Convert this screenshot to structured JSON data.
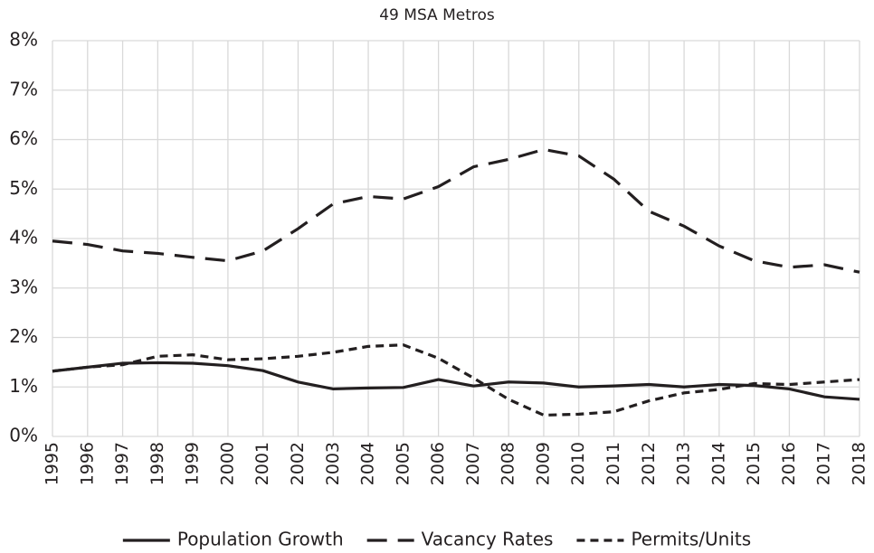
{
  "chart_data": {
    "type": "line",
    "title": "49 MSA Metros",
    "categories": [
      "1995",
      "1996",
      "1997",
      "1998",
      "1999",
      "2000",
      "2001",
      "2002",
      "2003",
      "2004",
      "2005",
      "2006",
      "2007",
      "2008",
      "2009",
      "2010",
      "2011",
      "2012",
      "2013",
      "2014",
      "2015",
      "2016",
      "2017",
      "2018"
    ],
    "series": [
      {
        "name": "Population Growth",
        "color": "#231f20",
        "dash": "solid",
        "values": [
          1.32,
          1.4,
          1.48,
          1.49,
          1.48,
          1.43,
          1.33,
          1.1,
          0.96,
          0.98,
          0.99,
          1.15,
          1.02,
          1.1,
          1.08,
          1.0,
          1.02,
          1.05,
          1.0,
          1.05,
          1.03,
          0.96,
          0.8,
          0.75
        ]
      },
      {
        "name": "Vacancy Rates",
        "color": "#231f20",
        "dash": "long",
        "values": [
          3.95,
          3.88,
          3.75,
          3.7,
          3.62,
          3.55,
          3.75,
          4.2,
          4.7,
          4.85,
          4.8,
          5.05,
          5.45,
          5.6,
          5.8,
          5.67,
          5.2,
          4.55,
          4.25,
          3.85,
          3.55,
          3.42,
          3.47,
          3.32
        ]
      },
      {
        "name": "Permits/Units",
        "color": "#231f20",
        "dash": "short",
        "values": [
          1.32,
          1.4,
          1.45,
          1.62,
          1.65,
          1.55,
          1.57,
          1.62,
          1.7,
          1.82,
          1.85,
          1.58,
          1.18,
          0.75,
          0.43,
          0.45,
          0.5,
          0.72,
          0.88,
          0.95,
          1.07,
          1.05,
          1.1,
          1.15
        ]
      }
    ],
    "ylim": [
      0,
      8
    ],
    "yticks": [
      {
        "value": 0,
        "label": "0%"
      },
      {
        "value": 1,
        "label": "1%"
      },
      {
        "value": 2,
        "label": "2%"
      },
      {
        "value": 3,
        "label": "3%"
      },
      {
        "value": 4,
        "label": "4%"
      },
      {
        "value": 5,
        "label": "5%"
      },
      {
        "value": 6,
        "label": "6%"
      },
      {
        "value": 7,
        "label": "7%"
      },
      {
        "value": 8,
        "label": "8%"
      }
    ],
    "grid": true,
    "legend": "bottom"
  }
}
